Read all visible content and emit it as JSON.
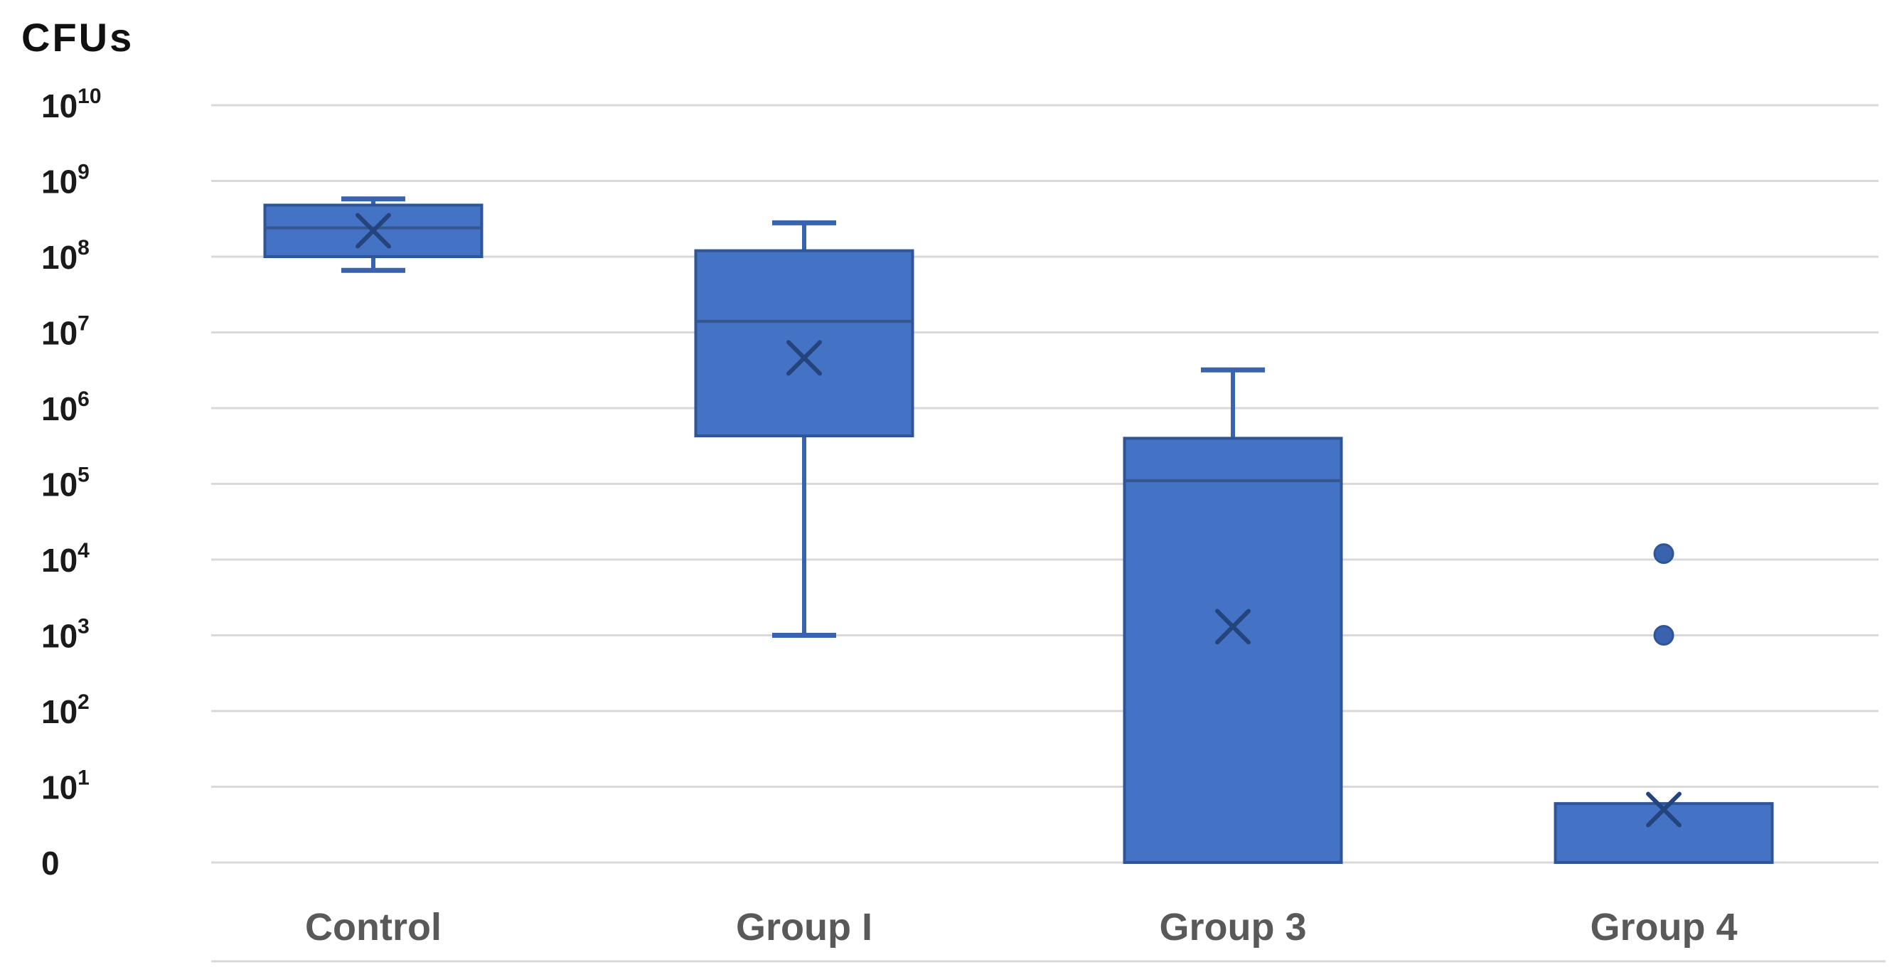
{
  "chart_data": {
    "type": "boxplot",
    "title": "CFUs",
    "y_axis": {
      "scale": "log10-with-zero-baseline",
      "tick_labels": [
        {
          "base": "10",
          "sup": "10",
          "exp": 10
        },
        {
          "base": "10",
          "sup": "9",
          "exp": 9
        },
        {
          "base": "10",
          "sup": "8",
          "exp": 8
        },
        {
          "base": "10",
          "sup": "7",
          "exp": 7
        },
        {
          "base": "10",
          "sup": "6",
          "exp": 6
        },
        {
          "base": "10",
          "sup": "5",
          "exp": 5
        },
        {
          "base": "10",
          "sup": "4",
          "exp": 4
        },
        {
          "base": "10",
          "sup": "3",
          "exp": 3
        },
        {
          "base": "10",
          "sup": "2",
          "exp": 2
        },
        {
          "base": "10",
          "sup": "1",
          "exp": 1
        },
        {
          "base": "0",
          "sup": "",
          "exp": null
        }
      ],
      "range_top_label": "10^10",
      "range_bottom_label": "0",
      "grid": true
    },
    "categories": [
      "Control",
      "Group I",
      "Group 3",
      "Group 4"
    ],
    "series": [
      {
        "name": "Control",
        "whisker_low": 66000000.0,
        "q1": 100000000.0,
        "median": 240000000.0,
        "mean": 220000000.0,
        "q3": 480000000.0,
        "whisker_high": 580000000.0,
        "outliers": []
      },
      {
        "name": "Group I",
        "whisker_low": 1000.0,
        "q1": 430000.0,
        "median": 14000000.0,
        "mean": 4600000.0,
        "q3": 120000000.0,
        "whisker_high": 280000000.0,
        "outliers": []
      },
      {
        "name": "Group 3",
        "whisker_low": null,
        "q1": 0,
        "median": 110000.0,
        "mean": 1300.0,
        "q3": 400000.0,
        "whisker_high": 3200000.0,
        "outliers": []
      },
      {
        "name": "Group 4",
        "whisker_low": null,
        "q1": 0,
        "median": null,
        "mean": 5,
        "q3": 6,
        "whisker_high": null,
        "outliers": [
          12000.0,
          1000.0
        ]
      }
    ],
    "legend": "none",
    "colors": {
      "box_fill": "#4472C4",
      "box_border": "#2F5597",
      "whisker": "#3A63AF",
      "median_line": "#35568F",
      "mean_marker": "#24447E",
      "outlier_dot": "#3A62AE",
      "gridline": "#D9D9D9",
      "tick_text": "#1A1A1A",
      "category_text": "#595959",
      "background": "#FFFFFF"
    }
  }
}
